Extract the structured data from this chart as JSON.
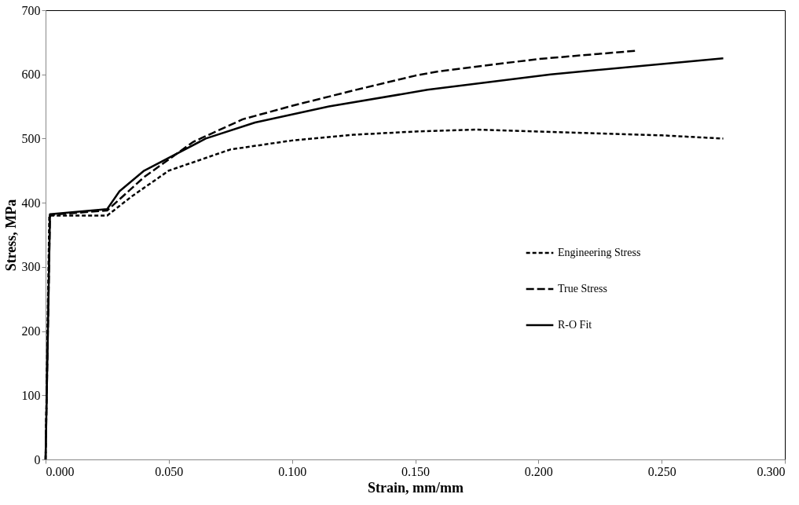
{
  "chart_data": {
    "type": "line",
    "xlabel": "Strain, mm/mm",
    "ylabel": "Stress, MPa",
    "xlim": [
      0,
      0.3
    ],
    "xticks": [
      {
        "value": 0,
        "label": "0.000"
      },
      {
        "value": 0.05,
        "label": "0.050"
      },
      {
        "value": 0.1,
        "label": "0.100"
      },
      {
        "value": 0.15,
        "label": "0.150"
      },
      {
        "value": 0.2,
        "label": "0.200"
      },
      {
        "value": 0.25,
        "label": "0.250"
      },
      {
        "value": 0.3,
        "label": "0.300"
      }
    ],
    "ylim": [
      0,
      700
    ],
    "yticks": [
      0,
      100,
      200,
      300,
      400,
      500,
      600,
      700
    ],
    "grid": false,
    "legend": "right",
    "marker": "none",
    "series": [
      {
        "name": "Engineering Stress",
        "color": "#000000",
        "line_style": "dotted",
        "x": [
          0,
          0.0015,
          0.025,
          0.035,
          0.05,
          0.075,
          0.1,
          0.125,
          0.15,
          0.175,
          0.2,
          0.25,
          0.275
        ],
        "values": [
          0,
          380,
          380,
          410,
          450,
          483,
          497,
          506,
          511,
          514,
          511,
          505,
          500
        ]
      },
      {
        "name": "True Stress",
        "color": "#000000",
        "line_style": "dashed",
        "x": [
          0,
          0.0018,
          0.025,
          0.04,
          0.06,
          0.08,
          0.1,
          0.125,
          0.15,
          0.16,
          0.2,
          0.24
        ],
        "values": [
          0,
          381,
          388,
          440,
          495,
          530,
          551,
          575,
          598,
          605,
          624,
          637
        ]
      },
      {
        "name": "R-O Fit",
        "color": "#000000",
        "line_style": "solid",
        "x": [
          0,
          0.0018,
          0.025,
          0.03,
          0.04,
          0.065,
          0.085,
          0.115,
          0.155,
          0.205,
          0.275
        ],
        "values": [
          0,
          382,
          390,
          418,
          450,
          500,
          525,
          550,
          576,
          600,
          625
        ]
      }
    ]
  }
}
